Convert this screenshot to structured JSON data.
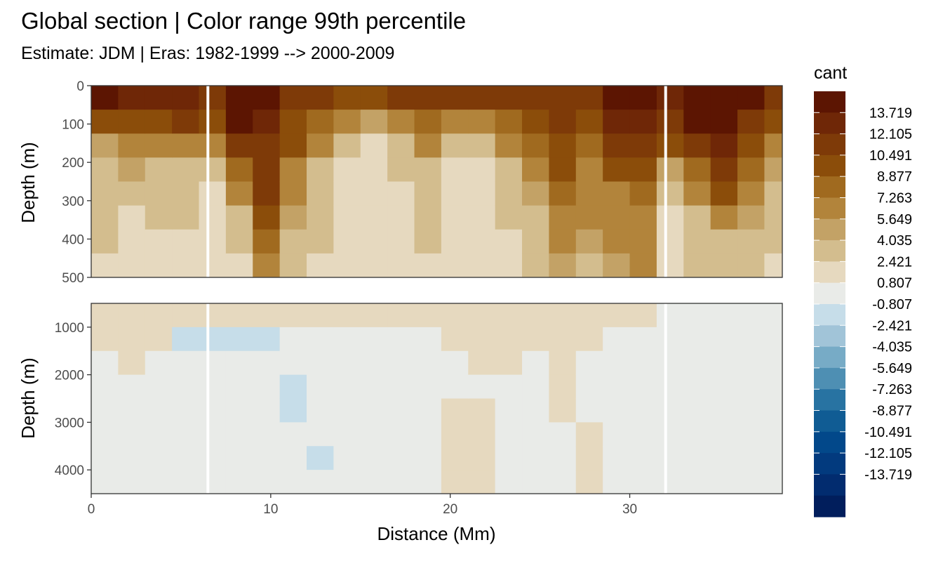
{
  "chart_data": {
    "type": "heatmap",
    "title": "Global section | Color range 99th percentile",
    "subtitle": "Estimate: JDM  | Eras: 1982-1999 --> 2000-2009",
    "xlabel": "Distance (Mm)",
    "ylabel": "Depth (m)",
    "xlim": [
      0,
      38.5
    ],
    "x_ticks": [
      0,
      10,
      20,
      30
    ],
    "grid": true,
    "legend_position": "right",
    "panels": [
      {
        "name": "upper",
        "ylim": [
          0,
          500
        ],
        "y_reversed": true,
        "y_ticks": [
          0,
          100,
          200,
          300,
          400,
          500
        ],
        "gap_distances": [
          6.5,
          32.0
        ],
        "columns": [
          {
            "x": 0,
            "v": [
              14,
              9,
              5,
              4,
              3,
              3,
              3,
              2
            ]
          },
          {
            "x": 1.5,
            "v": [
              13,
              10,
              7,
              5,
              3,
              2,
              2,
              1
            ]
          },
          {
            "x": 3,
            "v": [
              13,
              10,
              6,
              4,
              3,
              3,
              2,
              2
            ]
          },
          {
            "x": 4.5,
            "v": [
              13,
              11,
              7,
              4,
              3,
              3,
              2,
              2
            ]
          },
          {
            "x": 6,
            "v": [
              12,
              9,
              6,
              3,
              2,
              2,
              2,
              1
            ]
          },
          {
            "x": 7.5,
            "v": [
              15,
              14,
              11,
              8,
              6,
              4,
              3,
              2
            ]
          },
          {
            "x": 9,
            "v": [
              14,
              13,
              12,
              12,
              11,
              10,
              8,
              6
            ]
          },
          {
            "x": 10.5,
            "v": [
              12,
              10,
              9,
              7,
              6,
              5,
              4,
              3
            ]
          },
          {
            "x": 12,
            "v": [
              11,
              8,
              6,
              4,
              3,
              3,
              3,
              2
            ]
          },
          {
            "x": 13.5,
            "v": [
              10,
              6,
              3,
              2,
              1,
              1,
              1,
              1
            ]
          },
          {
            "x": 15,
            "v": [
              10,
              5,
              2,
              1,
              1,
              1,
              1,
              1
            ]
          },
          {
            "x": 16.5,
            "v": [
              11,
              7,
              4,
              3,
              2,
              2,
              1,
              1
            ]
          },
          {
            "x": 18,
            "v": [
              11,
              8,
              6,
              4,
              3,
              3,
              3,
              2
            ]
          },
          {
            "x": 19.5,
            "v": [
              11,
              6,
              3,
              1,
              1,
              1,
              1,
              1
            ]
          },
          {
            "x": 21,
            "v": [
              11,
              6,
              3,
              2,
              1,
              1,
              1,
              1
            ]
          },
          {
            "x": 22.5,
            "v": [
              11,
              8,
              6,
              4,
              3,
              3,
              2,
              2
            ]
          },
          {
            "x": 24,
            "v": [
              12,
              10,
              8,
              6,
              5,
              4,
              4,
              3
            ]
          },
          {
            "x": 25.5,
            "v": [
              12,
              11,
              10,
              9,
              8,
              7,
              6,
              5
            ]
          },
          {
            "x": 27,
            "v": [
              12,
              10,
              8,
              7,
              6,
              6,
              5,
              4
            ]
          },
          {
            "x": 28.5,
            "v": [
              15,
              13,
              11,
              9,
              7,
              6,
              6,
              5
            ]
          },
          {
            "x": 30,
            "v": [
              14,
              13,
              11,
              10,
              8,
              7,
              7,
              6
            ]
          },
          {
            "x": 31.5,
            "v": [
              13,
              12,
              9,
              5,
              3,
              2,
              2,
              2
            ]
          },
          {
            "x": 33,
            "v": [
              15,
              14,
              12,
              8,
              6,
              4,
              3,
              3
            ]
          },
          {
            "x": 34.5,
            "v": [
              15,
              14,
              13,
              11,
              9,
              6,
              4,
              3
            ]
          },
          {
            "x": 36,
            "v": [
              14,
              12,
              10,
              8,
              6,
              5,
              4,
              3
            ]
          },
          {
            "x": 37.5,
            "v": [
              12,
              9,
              7,
              5,
              4,
              3,
              3,
              2
            ]
          }
        ]
      },
      {
        "name": "lower",
        "ylim": [
          500,
          4500
        ],
        "y_reversed": true,
        "y_ticks": [
          1000,
          2000,
          3000,
          4000
        ],
        "gap_distances": [
          6.5,
          32.0
        ],
        "columns": [
          {
            "x": 0,
            "v": [
              1,
              1,
              0,
              0,
              0,
              0,
              0,
              0
            ]
          },
          {
            "x": 1.5,
            "v": [
              1,
              1,
              1,
              0,
              0,
              0,
              0,
              0
            ]
          },
          {
            "x": 3,
            "v": [
              1,
              2,
              0,
              0,
              0,
              0,
              0,
              0
            ]
          },
          {
            "x": 4.5,
            "v": [
              1,
              -1,
              0,
              0,
              0,
              0,
              0,
              0
            ]
          },
          {
            "x": 6,
            "v": [
              1,
              -2,
              0,
              0,
              0,
              0,
              0,
              0
            ]
          },
          {
            "x": 7.5,
            "v": [
              1,
              -2,
              0,
              0,
              0,
              0,
              0,
              0
            ]
          },
          {
            "x": 9,
            "v": [
              2,
              -1,
              0,
              0,
              0,
              0,
              0,
              0
            ]
          },
          {
            "x": 10.5,
            "v": [
              2,
              0,
              0,
              -1,
              -1,
              0,
              0,
              0
            ]
          },
          {
            "x": 12,
            "v": [
              1,
              0,
              0,
              0,
              0,
              0,
              -1,
              0
            ]
          },
          {
            "x": 13.5,
            "v": [
              1,
              0,
              0,
              0,
              0,
              0,
              0,
              0
            ]
          },
          {
            "x": 15,
            "v": [
              1,
              0,
              0,
              0,
              0,
              0,
              0,
              0
            ]
          },
          {
            "x": 16.5,
            "v": [
              1,
              0,
              0,
              0,
              0,
              0,
              0,
              0
            ]
          },
          {
            "x": 18,
            "v": [
              1,
              0,
              0,
              0,
              0,
              0,
              0,
              0
            ]
          },
          {
            "x": 19.5,
            "v": [
              1,
              1,
              0,
              0,
              1,
              1,
              1,
              1
            ]
          },
          {
            "x": 21,
            "v": [
              1,
              1,
              1,
              0,
              1,
              1,
              1,
              1
            ]
          },
          {
            "x": 22.5,
            "v": [
              1,
              1,
              1,
              0,
              0,
              0,
              0,
              0
            ]
          },
          {
            "x": 24,
            "v": [
              1,
              1,
              0,
              0,
              0,
              0,
              0,
              0
            ]
          },
          {
            "x": 25.5,
            "v": [
              1,
              1,
              1,
              1,
              1,
              0,
              0,
              0
            ]
          },
          {
            "x": 27,
            "v": [
              1,
              1,
              0,
              0,
              0,
              1,
              1,
              1
            ]
          },
          {
            "x": 28.5,
            "v": [
              1,
              0,
              0,
              0,
              0,
              0,
              0,
              0
            ]
          },
          {
            "x": 30,
            "v": [
              1,
              0,
              0,
              0,
              0,
              0,
              0,
              0
            ]
          },
          {
            "x": 31.5,
            "v": [
              0,
              0,
              0,
              0,
              0,
              0,
              0,
              0
            ]
          },
          {
            "x": 33,
            "v": [
              0,
              0,
              0,
              0,
              0,
              0,
              0,
              0
            ]
          },
          {
            "x": 34.5,
            "v": [
              0,
              0,
              0,
              0,
              0,
              0,
              0,
              0
            ]
          },
          {
            "x": 36,
            "v": [
              0,
              0,
              0,
              0,
              0,
              0,
              0,
              0
            ]
          },
          {
            "x": 37.5,
            "v": [
              0,
              0,
              0,
              0,
              0,
              0,
              0,
              0
            ]
          }
        ]
      }
    ],
    "legend": {
      "title": "cant",
      "bins": [
        {
          "label": "",
          "color": "#5c1502"
        },
        {
          "label": "13.719",
          "color": "#6f2707"
        },
        {
          "label": "12.105",
          "color": "#7e3a08"
        },
        {
          "label": "10.491",
          "color": "#8b4d0a"
        },
        {
          "label": "8.877",
          "color": "#a06a1f"
        },
        {
          "label": "7.263",
          "color": "#b2843b"
        },
        {
          "label": "5.649",
          "color": "#c3a266"
        },
        {
          "label": "4.035",
          "color": "#d3bd8e"
        },
        {
          "label": "2.421",
          "color": "#e6d9bf"
        },
        {
          "label": "0.807",
          "color": "#e9ebe8"
        },
        {
          "label": "-0.807",
          "color": "#c6dde9"
        },
        {
          "label": "-2.421",
          "color": "#a1c4d8"
        },
        {
          "label": "-4.035",
          "color": "#77abc6"
        },
        {
          "label": "-5.649",
          "color": "#4e8fb3"
        },
        {
          "label": "-7.263",
          "color": "#2873a2"
        },
        {
          "label": "-8.877",
          "color": "#105c94"
        },
        {
          "label": "-10.491",
          "color": "#02488a"
        },
        {
          "label": "-12.105",
          "color": "#023a7e"
        },
        {
          "label": "-13.719",
          "color": "#022c6f"
        },
        {
          "label": "",
          "color": "#011e5c"
        }
      ]
    }
  }
}
